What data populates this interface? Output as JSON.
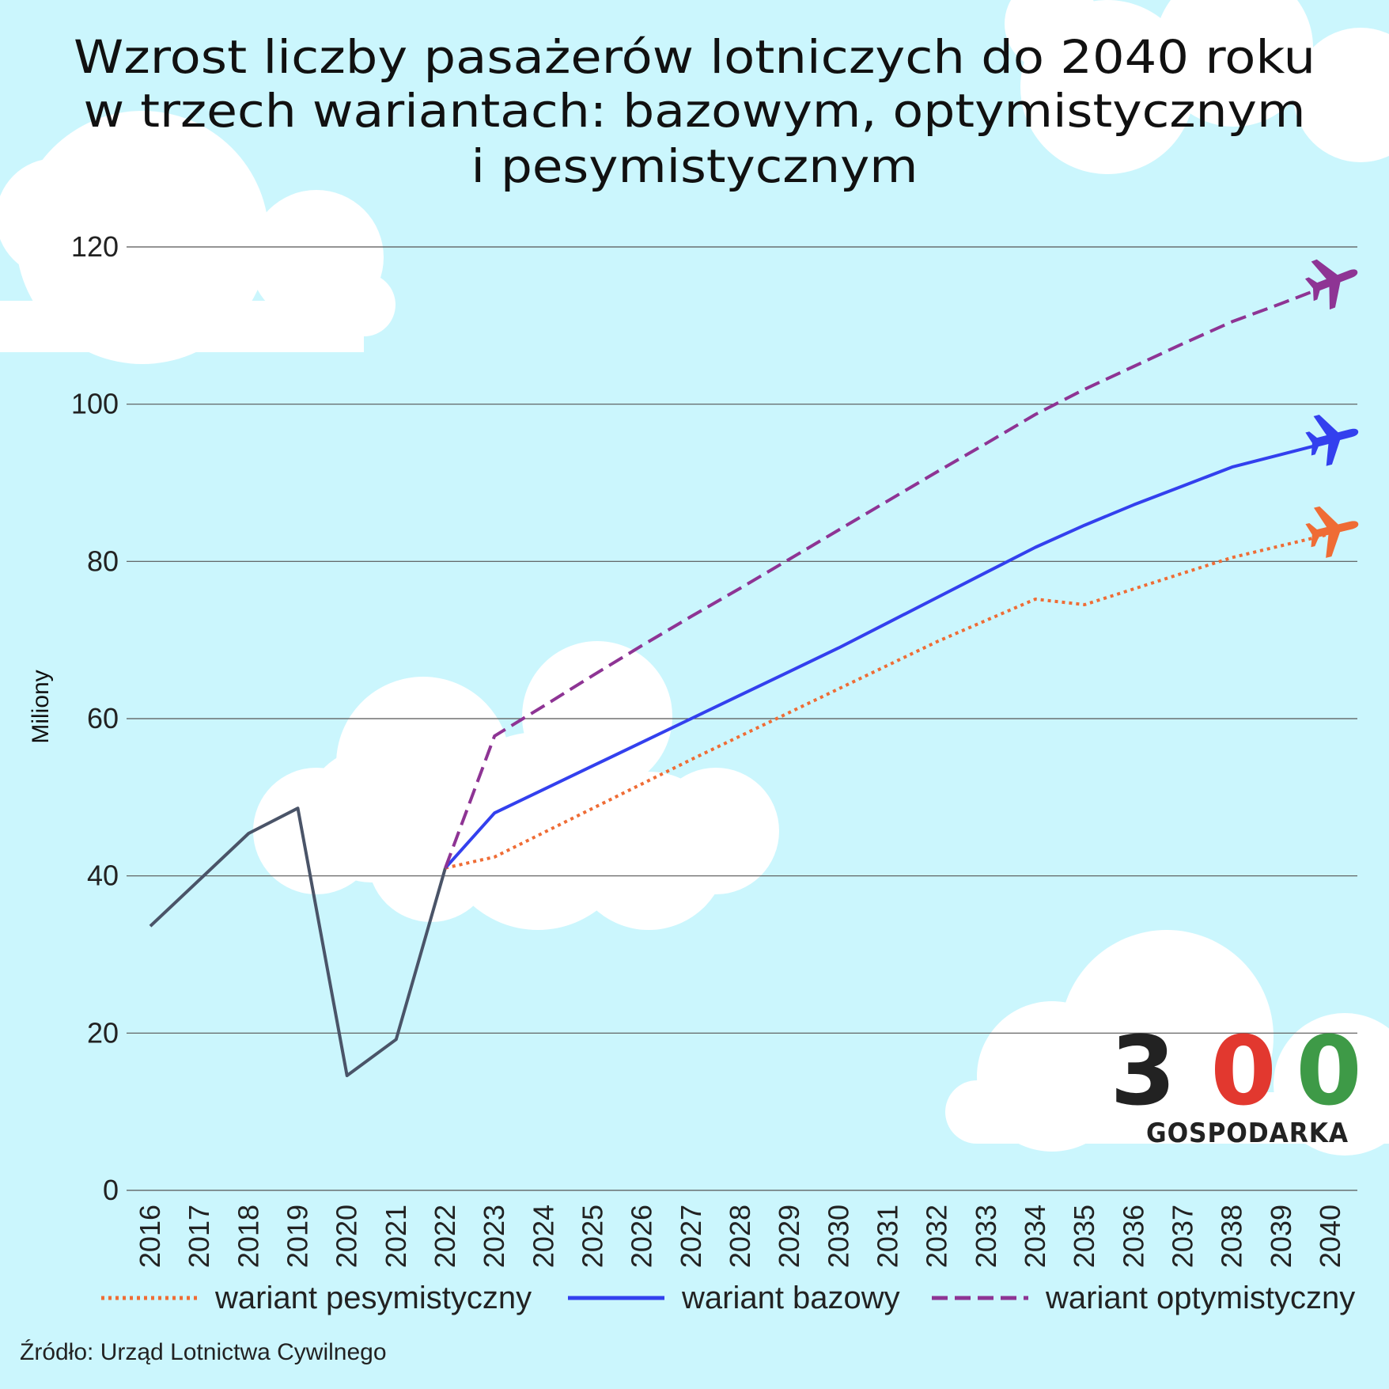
{
  "colors": {
    "background": "#cbf6fd",
    "cloud": "#ffffff",
    "grid": "#555555",
    "historical": "#4a5468",
    "pessimistic": "#ef6c35",
    "base": "#3340ee",
    "optimistic": "#8e3494",
    "logo_dark": "#222222",
    "logo_red": "#e2382f",
    "logo_green": "#3e9a47"
  },
  "logo": {
    "digits": [
      "3",
      "0",
      "0"
    ],
    "subtitle": "GOSPODARKA"
  },
  "source": "Źródło: Urząd Lotnictwa Cywilnego",
  "chart_data": {
    "type": "line",
    "title": "Wzrost liczby pasażerów lotniczych do 2040 roku w trzech wariantach: bazowym, optymistycznym i pesymistycznym",
    "title_lines": [
      "Wzrost liczby pasażerów lotniczych do 2040 roku",
      "w trzech wariantach: bazowym, optymistycznym",
      "i pesymistycznym"
    ],
    "ylabel": "Miliony",
    "xlabel": "",
    "ylim": [
      0,
      120
    ],
    "yticks": [
      0,
      20,
      40,
      60,
      80,
      100,
      120
    ],
    "grid": true,
    "legend_position": "bottom",
    "x": [
      2016,
      2017,
      2018,
      2019,
      2020,
      2021,
      2022,
      2023,
      2024,
      2025,
      2026,
      2027,
      2028,
      2029,
      2030,
      2031,
      2032,
      2033,
      2034,
      2035,
      2036,
      2037,
      2038,
      2039,
      2040
    ],
    "series": [
      {
        "key": "historical",
        "name": "",
        "style": "solid",
        "x": [
          2016,
          2017,
          2018,
          2019,
          2020,
          2021,
          2022
        ],
        "values": [
          33.6,
          39.5,
          45.4,
          48.6,
          14.6,
          19.2,
          41.0
        ]
      },
      {
        "key": "pessimistic",
        "name": "wariant pesymistyczny",
        "style": "dotted",
        "x": [
          2022,
          2023,
          2024,
          2025,
          2026,
          2027,
          2028,
          2029,
          2030,
          2031,
          2032,
          2033,
          2034,
          2035,
          2036,
          2037,
          2038,
          2039,
          2040
        ],
        "values": [
          41.0,
          42.4,
          45.5,
          48.6,
          51.7,
          54.8,
          57.8,
          60.8,
          63.8,
          66.8,
          69.8,
          72.5,
          75.2,
          74.5,
          76.5,
          78.5,
          80.5,
          82.0,
          83.5
        ]
      },
      {
        "key": "base",
        "name": "wariant bazowy",
        "style": "solid",
        "x": [
          2022,
          2023,
          2024,
          2025,
          2026,
          2027,
          2028,
          2029,
          2030,
          2031,
          2032,
          2033,
          2034,
          2035,
          2036,
          2037,
          2038,
          2039,
          2040
        ],
        "values": [
          41.0,
          48.0,
          51.0,
          54.0,
          57.0,
          60.0,
          63.0,
          66.0,
          69.0,
          72.2,
          75.4,
          78.6,
          81.8,
          84.6,
          87.2,
          89.6,
          92.0,
          93.6,
          95.2
        ]
      },
      {
        "key": "optimistic",
        "name": "wariant optymistyczny",
        "style": "dashed",
        "x": [
          2022,
          2023,
          2024,
          2025,
          2026,
          2027,
          2028,
          2029,
          2030,
          2031,
          2032,
          2033,
          2034,
          2035,
          2036,
          2037,
          2038,
          2039,
          2040
        ],
        "values": [
          41.0,
          57.8,
          61.6,
          65.5,
          69.3,
          73.0,
          76.6,
          80.3,
          84.0,
          87.7,
          91.4,
          95.0,
          98.7,
          101.9,
          104.8,
          107.7,
          110.5,
          112.8,
          115.2
        ]
      }
    ]
  }
}
